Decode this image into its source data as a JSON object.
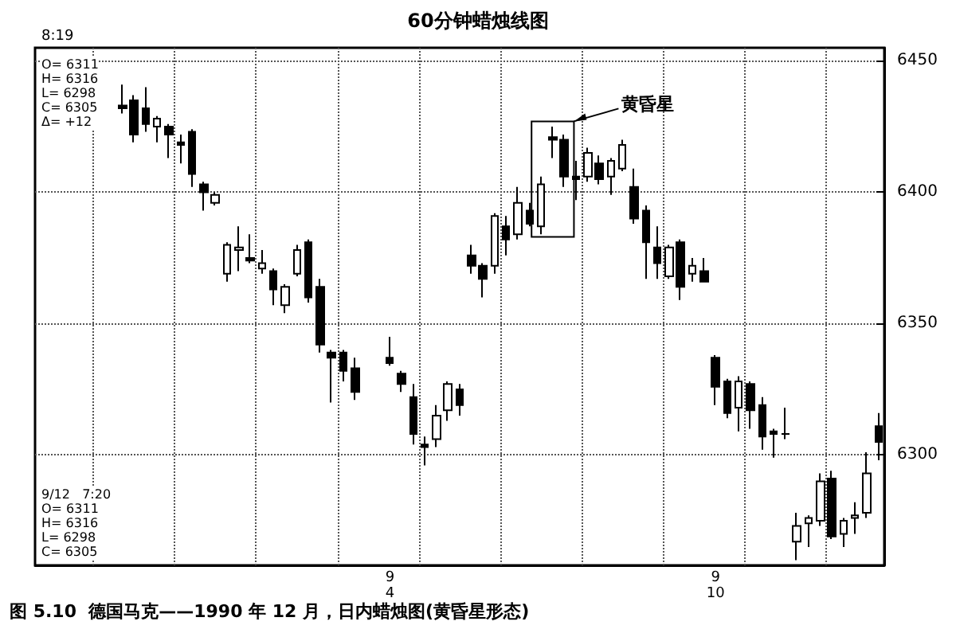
{
  "chart_data": {
    "type": "candlestick",
    "title": "60分钟蜡烛线图",
    "categories": [
      null,
      null,
      null,
      null,
      null,
      null,
      null,
      null,
      null,
      null,
      null,
      null,
      null,
      null,
      null,
      null,
      null,
      null,
      null,
      null,
      null,
      null,
      null,
      null,
      null,
      null,
      null,
      null,
      null,
      null,
      "9\n4",
      null,
      null,
      null,
      null,
      null,
      null,
      null,
      null,
      null,
      null,
      null,
      null,
      null,
      null,
      null,
      null,
      null,
      null,
      null,
      null,
      null,
      null,
      null,
      null,
      null,
      null,
      null,
      "9\n10",
      null,
      null,
      null,
      null,
      null,
      null,
      null,
      null,
      null,
      null,
      null,
      null,
      null,
      null
    ],
    "ohlc": [
      null,
      null,
      null,
      null,
      null,
      null,
      null,
      [
        6433,
        6441,
        6430,
        6432
      ],
      [
        6435,
        6437,
        6419,
        6422
      ],
      [
        6432,
        6440,
        6423,
        6426
      ],
      [
        6425,
        6429,
        6419,
        6428
      ],
      [
        6425,
        6426,
        6413,
        6422
      ],
      [
        6419,
        6422,
        6411,
        6418
      ],
      [
        6423,
        6424,
        6402,
        6407
      ],
      [
        6403,
        6404,
        6393,
        6400
      ],
      [
        6396,
        6400,
        6395,
        6399
      ],
      [
        6369,
        6381,
        6366,
        6380
      ],
      [
        6378,
        6387,
        6370,
        6379
      ],
      [
        6375,
        6384,
        6373,
        6374
      ],
      [
        6371,
        6378,
        6369,
        6373
      ],
      [
        6370,
        6371,
        6357,
        6363
      ],
      [
        6357,
        6365,
        6354,
        6364
      ],
      [
        6369,
        6380,
        6368,
        6378
      ],
      [
        6381,
        6382,
        6358,
        6360
      ],
      [
        6364,
        6367,
        6339,
        6342
      ],
      [
        6339,
        6340,
        6320,
        6337
      ],
      [
        6339,
        6340,
        6328,
        6332
      ],
      [
        6333,
        6337,
        6321,
        6324
      ],
      null,
      null,
      [
        6337,
        6345,
        6334,
        6335
      ],
      [
        6331,
        6332,
        6324,
        6327
      ],
      [
        6322,
        6327,
        6304,
        6308
      ],
      [
        6304,
        6307,
        6296,
        6303
      ],
      [
        6306,
        6319,
        6303,
        6315
      ],
      [
        6317,
        6328,
        6313,
        6327
      ],
      [
        6325,
        6327,
        6315,
        6319
      ],
      [
        6376,
        6380,
        6369,
        6372
      ],
      [
        6372,
        6373,
        6360,
        6367
      ],
      [
        6372,
        6392,
        6369,
        6391
      ],
      [
        6387,
        6391,
        6376,
        6382
      ],
      [
        6384,
        6402,
        6382,
        6396
      ],
      [
        6393,
        6396,
        6387,
        6388
      ],
      [
        6387,
        6406,
        6384,
        6403
      ],
      [
        6421,
        6425,
        6413,
        6420
      ],
      [
        6420,
        6422,
        6402,
        6406
      ],
      [
        6406,
        6412,
        6397,
        6405
      ],
      [
        6406,
        6417,
        6404,
        6415
      ],
      [
        6411,
        6414,
        6403,
        6405
      ],
      [
        6406,
        6413,
        6399,
        6412
      ],
      [
        6409,
        6420,
        6408,
        6418
      ],
      [
        6402,
        6409,
        6388,
        6390
      ],
      [
        6393,
        6395,
        6367,
        6381
      ],
      [
        6379,
        6387,
        6367,
        6373
      ],
      [
        6368,
        6380,
        6367,
        6379
      ],
      [
        6381,
        6382,
        6359,
        6364
      ],
      [
        6369,
        6375,
        6366,
        6372
      ],
      [
        6370,
        6375,
        6366,
        6366
      ],
      [
        6337,
        6338,
        6319,
        6326
      ],
      [
        6328,
        6329,
        6314,
        6316
      ],
      [
        6318,
        6330,
        6309,
        6328
      ],
      [
        6327,
        6328,
        6310,
        6317
      ],
      [
        6319,
        6322,
        6302,
        6307
      ],
      [
        6309,
        6310,
        6299,
        6308
      ],
      [
        6308,
        6318,
        6306,
        6308
      ],
      [
        6267,
        6278,
        6260,
        6273
      ],
      [
        6274,
        6277,
        6265,
        6276
      ],
      [
        6275,
        6293,
        6273,
        6290
      ],
      [
        6291,
        6294,
        6268,
        6269
      ],
      [
        6270,
        6276,
        6265,
        6275
      ],
      [
        6276,
        6282,
        6270,
        6277
      ],
      [
        6278,
        6301,
        6276,
        6293
      ],
      [
        6311,
        6316,
        6298,
        6305
      ]
    ],
    "color": "#000000",
    "ylim": [
      6258,
      6455
    ],
    "yticks": [
      6300,
      6350,
      6400,
      6450
    ],
    "grid": true,
    "annotations": [
      "8:19",
      "O= 6311\nH= 6316\nL= 6298\nC= 6305\nΔ= +12",
      "9/12   7:20\nO= 6311\nH= 6316\nL= 6298\nC= 6305",
      "黄昏星",
      "图 5.10  德国马克——1990 年 12 月，日内蜡烛图(黄昏星形态)"
    ]
  }
}
